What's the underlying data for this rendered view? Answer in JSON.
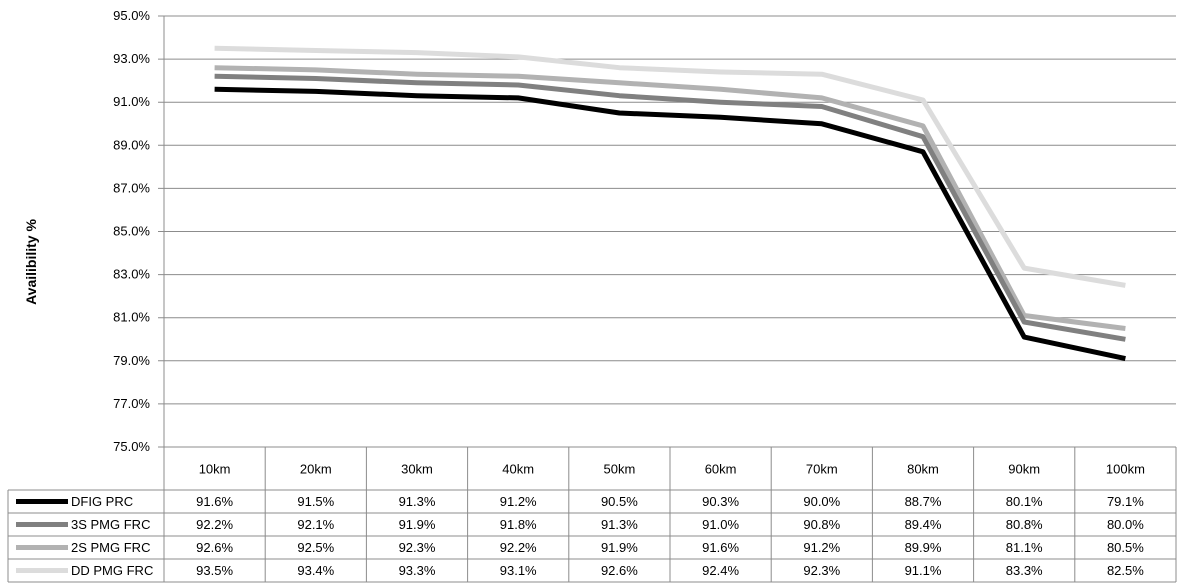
{
  "chart_data": {
    "type": "line",
    "ylabel": "Availibility %",
    "ylim": [
      75.0,
      95.0
    ],
    "ytick_step": 2.0,
    "y_ticks": [
      "75.0%",
      "77.0%",
      "79.0%",
      "81.0%",
      "83.0%",
      "85.0%",
      "87.0%",
      "89.0%",
      "91.0%",
      "93.0%",
      "95.0%"
    ],
    "grid": true,
    "legend": "data-table",
    "categories": [
      "10km",
      "20km",
      "30km",
      "40km",
      "50km",
      "60km",
      "70km",
      "80km",
      "90km",
      "100km"
    ],
    "series": [
      {
        "name": "DFIG PRC",
        "color": "#000000",
        "values": [
          91.6,
          91.5,
          91.3,
          91.2,
          90.5,
          90.3,
          90.0,
          88.7,
          80.1,
          79.1
        ],
        "labels": [
          "91.6%",
          "91.5%",
          "91.3%",
          "91.2%",
          "90.5%",
          "90.3%",
          "90.0%",
          "88.7%",
          "80.1%",
          "79.1%"
        ]
      },
      {
        "name": "3S PMG FRC",
        "color": "#808080",
        "values": [
          92.2,
          92.1,
          91.9,
          91.8,
          91.3,
          91.0,
          90.8,
          89.4,
          80.8,
          80.0
        ],
        "labels": [
          "92.2%",
          "92.1%",
          "91.9%",
          "91.8%",
          "91.3%",
          "91.0%",
          "90.8%",
          "89.4%",
          "80.8%",
          "80.0%"
        ]
      },
      {
        "name": "2S PMG FRC",
        "color": "#b2b2b2",
        "values": [
          92.6,
          92.5,
          92.3,
          92.2,
          91.9,
          91.6,
          91.2,
          89.9,
          81.1,
          80.5
        ],
        "labels": [
          "92.6%",
          "92.5%",
          "92.3%",
          "92.2%",
          "91.9%",
          "91.6%",
          "91.2%",
          "89.9%",
          "81.1%",
          "80.5%"
        ]
      },
      {
        "name": "DD PMG FRC",
        "color": "#dcdcdc",
        "values": [
          93.5,
          93.4,
          93.3,
          93.1,
          92.6,
          92.4,
          92.3,
          91.1,
          83.3,
          82.5
        ],
        "labels": [
          "93.5%",
          "93.4%",
          "93.3%",
          "93.1%",
          "92.6%",
          "92.4%",
          "92.3%",
          "91.1%",
          "83.3%",
          "82.5%"
        ]
      }
    ]
  }
}
